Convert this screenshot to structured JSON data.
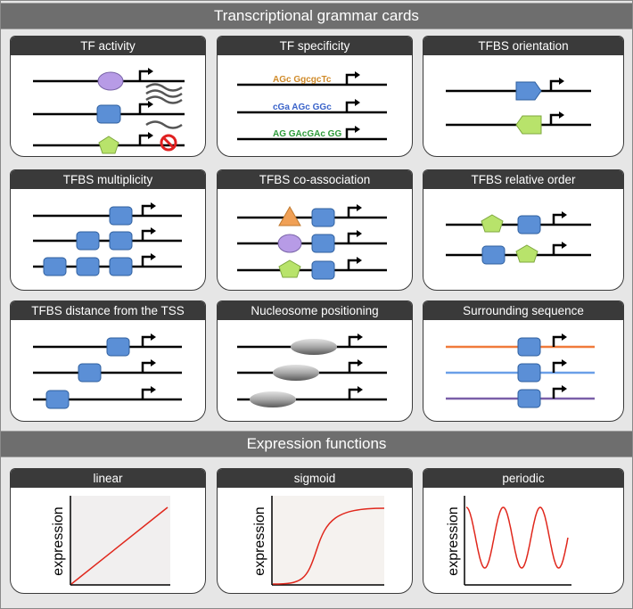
{
  "sections": {
    "grammar_title": "Transcriptional grammar cards",
    "functions_title": "Expression functions"
  },
  "cards": [
    {
      "title": "TF activity"
    },
    {
      "title": "TF specificity"
    },
    {
      "title": "TFBS orientation"
    },
    {
      "title": "TFBS multiplicity"
    },
    {
      "title": "TFBS  co-association"
    },
    {
      "title": "TFBS relative order"
    },
    {
      "title": "TFBS distance from the TSS"
    },
    {
      "title": "Nucleosome positioning"
    },
    {
      "title": "Surrounding sequence"
    }
  ],
  "functions": [
    {
      "title": "linear",
      "ylabel": "expression"
    },
    {
      "title": "sigmoid",
      "ylabel": "expression"
    },
    {
      "title": "periodic",
      "ylabel": "expression"
    }
  ],
  "logos": [
    "AGc GgcgcTc",
    "cGa AGc GGc",
    "AG GAcGAc GG"
  ],
  "colors": {
    "tf_blue": "#5b8fd6",
    "tf_purple": "#b79be6",
    "tf_green": "#b8e36b",
    "tf_orange": "#f0a056",
    "nucleosome": "#9a9a9a",
    "seq_orange": "#f07a3a",
    "seq_blue": "#6a9fe8",
    "seq_purple": "#7a5ea8",
    "curve_red": "#e0271c",
    "banner": "#6e6e6e",
    "card_header": "#3a3a3a",
    "no_sign": "#e02020"
  }
}
